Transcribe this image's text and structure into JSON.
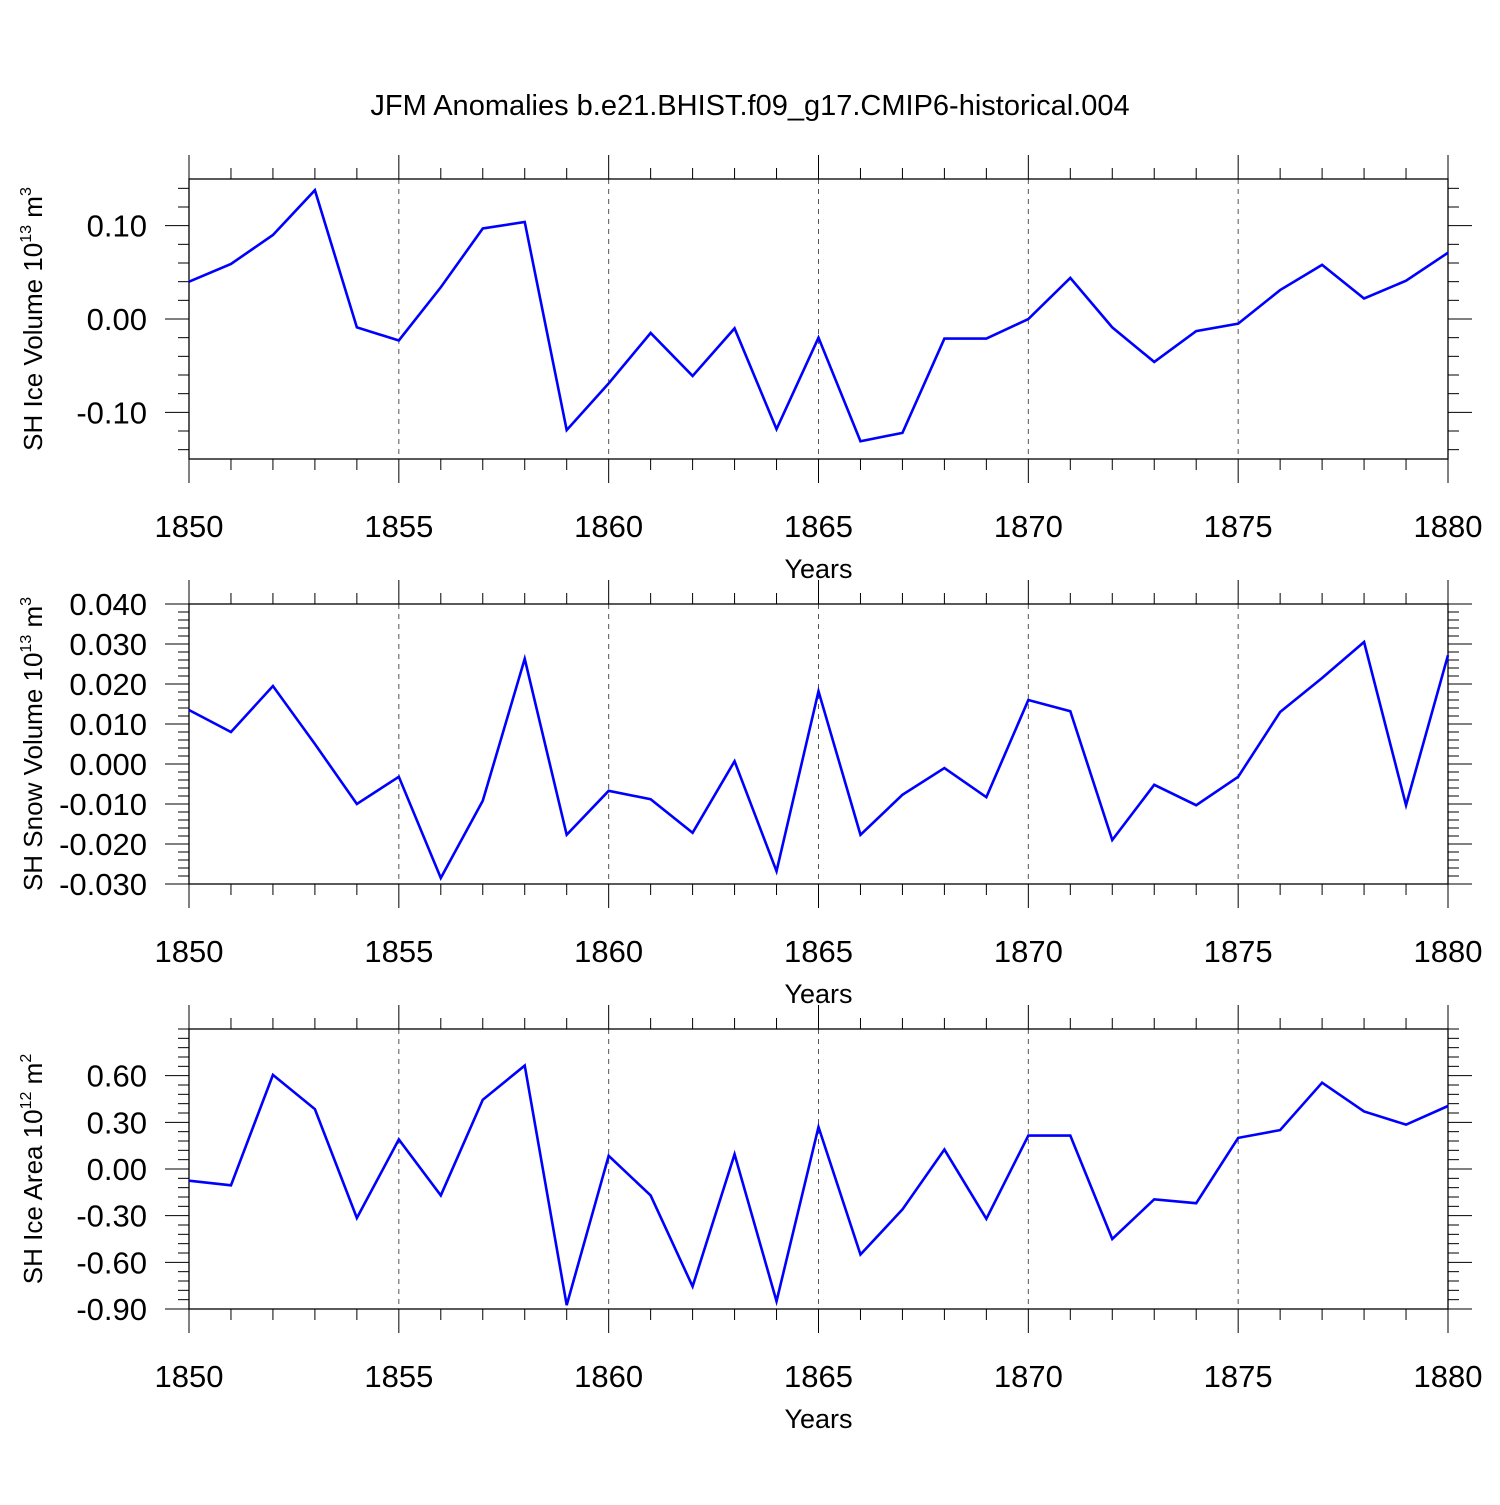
{
  "chart_data": [
    {
      "type": "line",
      "title": "JFM Anomalies b.e21.BHIST.f09_g17.CMIP6-historical.004",
      "xlabel": "Years",
      "ylabel": "SH Ice Volume 10",
      "ylabel_exp": "13",
      "ylabel_unit": " m",
      "ylabel_unit_exp": "3",
      "xlim": [
        1850,
        1880
      ],
      "ylim": [
        -0.15,
        0.15
      ],
      "x_ticks": [
        1850,
        1855,
        1860,
        1865,
        1870,
        1875,
        1880
      ],
      "x_tick_labels": [
        "1850",
        "1855",
        "1860",
        "1865",
        "1870",
        "1875",
        "1880"
      ],
      "y_ticks": [
        -0.1,
        0.0,
        0.1
      ],
      "y_tick_labels": [
        "-0.10",
        "0.00",
        "0.10"
      ],
      "grid": "vertical dashed at major x ticks",
      "line_color": "#0000ff",
      "x": [
        1850,
        1851,
        1852,
        1853,
        1854,
        1855,
        1856,
        1857,
        1858,
        1859,
        1860,
        1861,
        1862,
        1863,
        1864,
        1865,
        1866,
        1867,
        1868,
        1869,
        1870,
        1871,
        1872,
        1873,
        1874,
        1875,
        1876,
        1877,
        1878,
        1879,
        1880
      ],
      "values": [
        0.04,
        0.059,
        0.09,
        0.138,
        -0.009,
        -0.023,
        0.034,
        0.097,
        0.104,
        -0.119,
        -0.069,
        -0.015,
        -0.061,
        -0.01,
        -0.118,
        -0.02,
        -0.131,
        -0.122,
        -0.021,
        -0.021,
        0.0,
        0.044,
        -0.009,
        -0.046,
        -0.013,
        -0.005,
        0.031,
        0.058,
        0.022,
        0.041,
        0.071
      ]
    },
    {
      "type": "line",
      "xlabel": "Years",
      "ylabel": "SH Snow Volume 10",
      "ylabel_exp": "13",
      "ylabel_unit": " m",
      "ylabel_unit_exp": "3",
      "xlim": [
        1850,
        1880
      ],
      "ylim": [
        -0.03,
        0.04
      ],
      "x_ticks": [
        1850,
        1855,
        1860,
        1865,
        1870,
        1875,
        1880
      ],
      "x_tick_labels": [
        "1850",
        "1855",
        "1860",
        "1865",
        "1870",
        "1875",
        "1880"
      ],
      "y_ticks": [
        -0.03,
        -0.02,
        -0.01,
        0.0,
        0.01,
        0.02,
        0.03,
        0.04
      ],
      "y_tick_labels": [
        "-0.030",
        "-0.020",
        "-0.010",
        "0.000",
        "0.010",
        "0.020",
        "0.030",
        "0.040"
      ],
      "grid": "vertical dashed at major x ticks",
      "line_color": "#0000ff",
      "x": [
        1850,
        1851,
        1852,
        1853,
        1854,
        1855,
        1856,
        1857,
        1858,
        1859,
        1860,
        1861,
        1862,
        1863,
        1864,
        1865,
        1866,
        1867,
        1868,
        1869,
        1870,
        1871,
        1872,
        1873,
        1874,
        1875,
        1876,
        1877,
        1878,
        1879,
        1880
      ],
      "values": [
        0.0135,
        0.008,
        0.0195,
        0.005,
        -0.01,
        -0.0032,
        -0.0285,
        -0.0092,
        0.0263,
        -0.0177,
        -0.0067,
        -0.0088,
        -0.0172,
        0.0007,
        -0.0268,
        0.0182,
        -0.0177,
        -0.0077,
        -0.001,
        -0.0083,
        0.016,
        0.0132,
        -0.019,
        -0.0052,
        -0.0103,
        -0.0032,
        0.013,
        0.0215,
        0.0305,
        -0.0103,
        0.0272
      ]
    },
    {
      "type": "line",
      "xlabel": "Years",
      "ylabel": "SH Ice Area 10",
      "ylabel_exp": "12",
      "ylabel_unit": " m",
      "ylabel_unit_exp": "2",
      "xlim": [
        1850,
        1880
      ],
      "ylim": [
        -0.9,
        0.9
      ],
      "x_ticks": [
        1850,
        1855,
        1860,
        1865,
        1870,
        1875,
        1880
      ],
      "x_tick_labels": [
        "1850",
        "1855",
        "1860",
        "1865",
        "1870",
        "1875",
        "1880"
      ],
      "y_ticks": [
        -0.9,
        -0.6,
        -0.3,
        0.0,
        0.3,
        0.6
      ],
      "y_tick_labels": [
        "-0.90",
        "-0.60",
        "-0.30",
        "0.00",
        "0.30",
        "0.60"
      ],
      "grid": "vertical dashed at major x ticks",
      "line_color": "#0000ff",
      "x": [
        1850,
        1851,
        1852,
        1853,
        1854,
        1855,
        1856,
        1857,
        1858,
        1859,
        1860,
        1861,
        1862,
        1863,
        1864,
        1865,
        1866,
        1867,
        1868,
        1869,
        1870,
        1871,
        1872,
        1873,
        1874,
        1875,
        1876,
        1877,
        1878,
        1879,
        1880
      ],
      "values": [
        -0.075,
        -0.105,
        0.605,
        0.385,
        -0.315,
        0.19,
        -0.17,
        0.445,
        0.665,
        -0.875,
        0.085,
        -0.17,
        -0.755,
        0.095,
        -0.85,
        0.27,
        -0.55,
        -0.26,
        0.125,
        -0.32,
        0.215,
        0.215,
        -0.45,
        -0.195,
        -0.22,
        0.2,
        0.25,
        0.555,
        0.37,
        0.285,
        0.405
      ]
    }
  ]
}
